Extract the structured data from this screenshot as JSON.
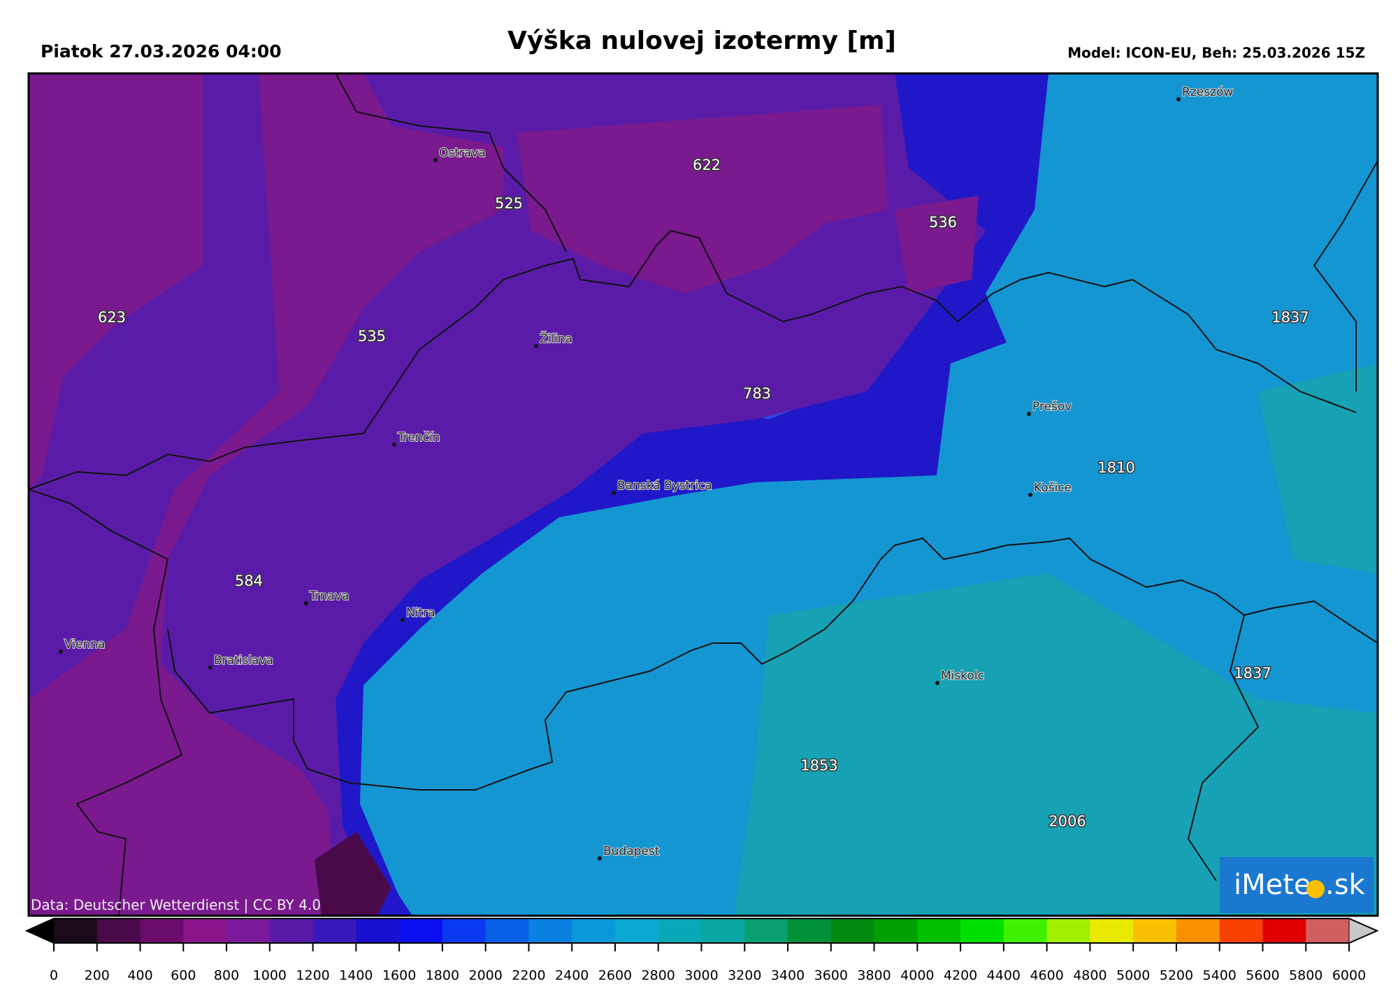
{
  "header": {
    "left": "Piatok 27.03.2026 04:00",
    "title": "Výška nulovej izotermy [m]",
    "right": "Model: ICON-EU, Beh: 25.03.2026 15Z"
  },
  "cities": [
    "Rzeszów",
    "Ostrava",
    "Žilina",
    "Trenčín",
    "Banská Bystrica",
    "Prešov",
    "Košice",
    "Nitra",
    "Trnava",
    "Vienna",
    "Bratislava",
    "Miskolc",
    "Budapest"
  ],
  "isolabels": [
    "623",
    "535",
    "525",
    "622",
    "536",
    "783",
    "1837",
    "1810",
    "584",
    "1837",
    "1853",
    "2006"
  ],
  "credit": "Data: Deutscher Wetterdienst | CC BY 4.0",
  "logo": {
    "left": "iMete",
    "right": ".sk"
  },
  "colorbar": {
    "ticks": [
      0,
      200,
      400,
      600,
      800,
      1000,
      1200,
      1400,
      1600,
      1800,
      2000,
      2200,
      2400,
      2600,
      2800,
      3000,
      3200,
      3400,
      3600,
      3800,
      4000,
      4200,
      4400,
      4600,
      4800,
      5000,
      5200,
      5400,
      5600,
      5800,
      6000
    ],
    "colors": [
      "#1a0a1a",
      "#4a0a4a",
      "#6a0c6a",
      "#8a148a",
      "#7a1a9a",
      "#5a1aa8",
      "#3818b8",
      "#1a10d0",
      "#0a10f0",
      "#0a3af0",
      "#0a60e8",
      "#0a80e0",
      "#0a98d8",
      "#08a8d0",
      "#08a8b8",
      "#08a8a0",
      "#08a070",
      "#009038",
      "#008a10",
      "#00a000",
      "#00c000",
      "#00e000",
      "#40f000",
      "#a0f000",
      "#e8e800",
      "#f8c000",
      "#f89000",
      "#f84000",
      "#e00000",
      "#d06060"
    ]
  }
}
